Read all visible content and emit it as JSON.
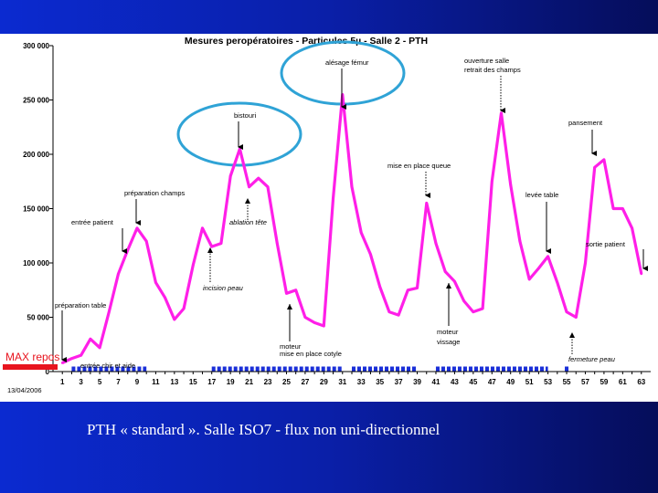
{
  "slide": {
    "caption": "PTH « standard ». Salle ISO7 - flux non uni-directionnel",
    "background_color": "#0a1fa8"
  },
  "chart_data": {
    "type": "line",
    "title": "Mesures peropératoires - Particules 5µ - Salle 2 - PTH",
    "date_label": "13/04/2006",
    "xlabel": "",
    "ylabel": "",
    "x": [
      1,
      2,
      3,
      4,
      5,
      6,
      7,
      8,
      9,
      10,
      11,
      12,
      13,
      14,
      15,
      16,
      17,
      18,
      19,
      20,
      21,
      22,
      23,
      24,
      25,
      26,
      27,
      28,
      29,
      30,
      31,
      32,
      33,
      34,
      35,
      36,
      37,
      38,
      39,
      40,
      41,
      42,
      43,
      44,
      45,
      46,
      47,
      48,
      49,
      50,
      51,
      52,
      53,
      54,
      55,
      56,
      57,
      58,
      59,
      60,
      61,
      62,
      63
    ],
    "x_tick_labels": [
      "1",
      "3",
      "5",
      "7",
      "9",
      "11",
      "13",
      "15",
      "17",
      "19",
      "21",
      "23",
      "25",
      "27",
      "29",
      "31",
      "33",
      "35",
      "37",
      "39",
      "41",
      "43",
      "45",
      "47",
      "49",
      "51",
      "53",
      "55",
      "57",
      "59",
      "61",
      "63"
    ],
    "y_tick_labels": [
      "0",
      "50 000",
      "100 000",
      "150 000",
      "200 000",
      "250 000",
      "300 000"
    ],
    "ylim": [
      0,
      300000
    ],
    "grid": false,
    "series": [
      {
        "color": "#ff1fe8",
        "values": [
          8000,
          12000,
          15000,
          30000,
          22000,
          55000,
          90000,
          112000,
          132000,
          120000,
          82000,
          68000,
          48000,
          58000,
          98000,
          132000,
          115000,
          118000,
          180000,
          205000,
          170000,
          178000,
          170000,
          118000,
          72000,
          75000,
          50000,
          45000,
          42000,
          160000,
          255000,
          170000,
          128000,
          108000,
          78000,
          55000,
          52000,
          75000,
          77000,
          155000,
          118000,
          92000,
          83000,
          65000,
          55000,
          58000,
          175000,
          238000,
          172000,
          120000,
          85000,
          95000,
          106000,
          82000,
          55000,
          50000,
          100000,
          188000,
          195000,
          150000,
          150000,
          132000,
          90000
        ]
      }
    ],
    "max_repos": {
      "label": "MAX repos",
      "value": 4000,
      "color": "#e8141e"
    },
    "activity_markers": {
      "color": "#1a2fd8",
      "segments": [
        [
          2,
          10
        ],
        [
          17,
          31
        ],
        [
          32,
          39
        ],
        [
          41,
          53
        ]
      ],
      "points": [
        55
      ]
    },
    "annotations": [
      {
        "label": "préparation table",
        "x": 1
      },
      {
        "label": "entrée chir et aide",
        "x": 2
      },
      {
        "label": "entrée patient",
        "x": 5
      },
      {
        "label": "préparation champs",
        "x": 9
      },
      {
        "label": "incision peau",
        "x": 17
      },
      {
        "label": "bistouri",
        "x": 19
      },
      {
        "label": "ablation tête",
        "x": 21
      },
      {
        "label": "moteur",
        "x": 25
      },
      {
        "label": "mise en place cotyle",
        "x": 25
      },
      {
        "label": "alésage fémur",
        "x": 31
      },
      {
        "label": "mise en place queue",
        "x": 40
      },
      {
        "label": "moteur",
        "x": 42
      },
      {
        "label": "vissage",
        "x": 42
      },
      {
        "label": "ouverture salle",
        "x": 48
      },
      {
        "label": "retrait des champs",
        "x": 48
      },
      {
        "label": "levée table",
        "x": 52
      },
      {
        "label": "fermeture peau",
        "x": 55
      },
      {
        "label": "pansement",
        "x": 59
      },
      {
        "label": "sortie patient",
        "x": 63
      }
    ]
  }
}
